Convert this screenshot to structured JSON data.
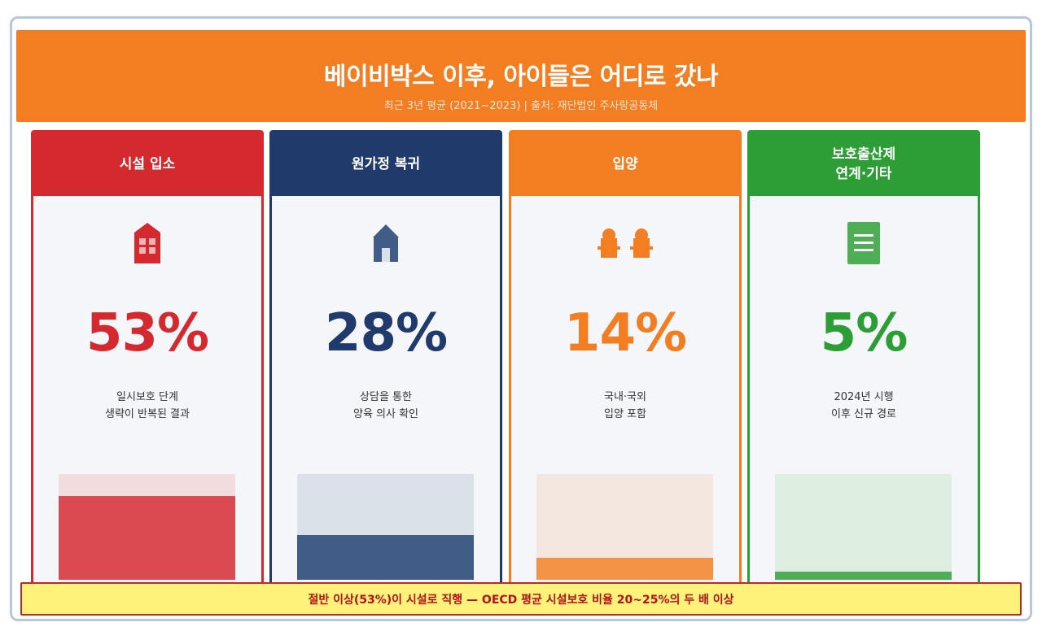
{
  "header": {
    "title": "베이비박스 이후, 아이들은 어디로 갔나",
    "subtitle": "최근 3년 평균 (2021~2023)  |  출처: 재단법인 주사랑공동체"
  },
  "cards": [
    {
      "title": "시설 입소",
      "icon": "building-icon",
      "percent_label": "53%",
      "percent": 53,
      "description": "일시보호 단계\n생략이 반복된 결과",
      "color": "#d42a2f",
      "bar_color": "#db4a50",
      "track_color": "#f3dcdd"
    },
    {
      "title": "원가정 복귀",
      "icon": "house-icon",
      "percent_label": "28%",
      "percent": 28,
      "description": "상담을 통한\n양육 의사 확인",
      "color": "#1f3a6b",
      "bar_color": "#415c86",
      "track_color": "#dbe1e9"
    },
    {
      "title": "입양",
      "icon": "people-icon",
      "percent_label": "14%",
      "percent": 14,
      "description": "국내·국외\n입양 포함",
      "color": "#f37e22",
      "bar_color": "#f49346",
      "track_color": "#f4e7df"
    },
    {
      "title": "보호출산제\n연계·기타",
      "icon": "document-icon",
      "percent_label": "5%",
      "percent": 5,
      "description": "2024년 시행\n이후 신규 경로",
      "color": "#2c9e35",
      "bar_color": "#4eae56",
      "track_color": "#ddede0"
    }
  ],
  "footer_note": "절반 이상(53%)이 시설로 직행 — OECD 평균 시설보호 비율 20~25%의 두 배 이상"
}
